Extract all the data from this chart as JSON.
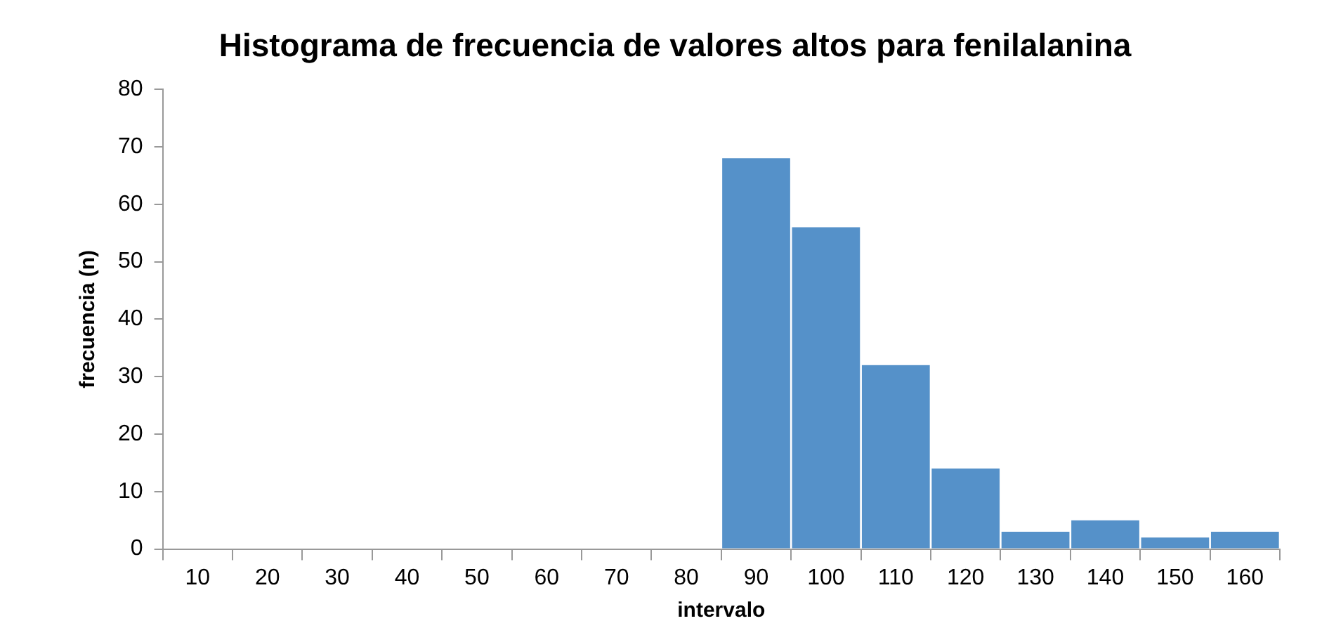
{
  "chart_data": {
    "type": "bar",
    "title": "Histograma de frecuencia de valores altos para fenilalanina",
    "xlabel": "intervalo",
    "ylabel": "frecuencia (n)",
    "categories": [
      "10",
      "20",
      "30",
      "40",
      "50",
      "60",
      "70",
      "80",
      "90",
      "100",
      "110",
      "120",
      "130",
      "140",
      "150",
      "160"
    ],
    "values": [
      0,
      0,
      0,
      0,
      0,
      0,
      0,
      0,
      68,
      56,
      32,
      14,
      3,
      5,
      2,
      3
    ],
    "color": "#5591c9",
    "ylim": [
      0,
      80
    ],
    "yticks": [
      0,
      10,
      20,
      30,
      40,
      50,
      60,
      70,
      80
    ],
    "grid": false,
    "legend": false
  }
}
